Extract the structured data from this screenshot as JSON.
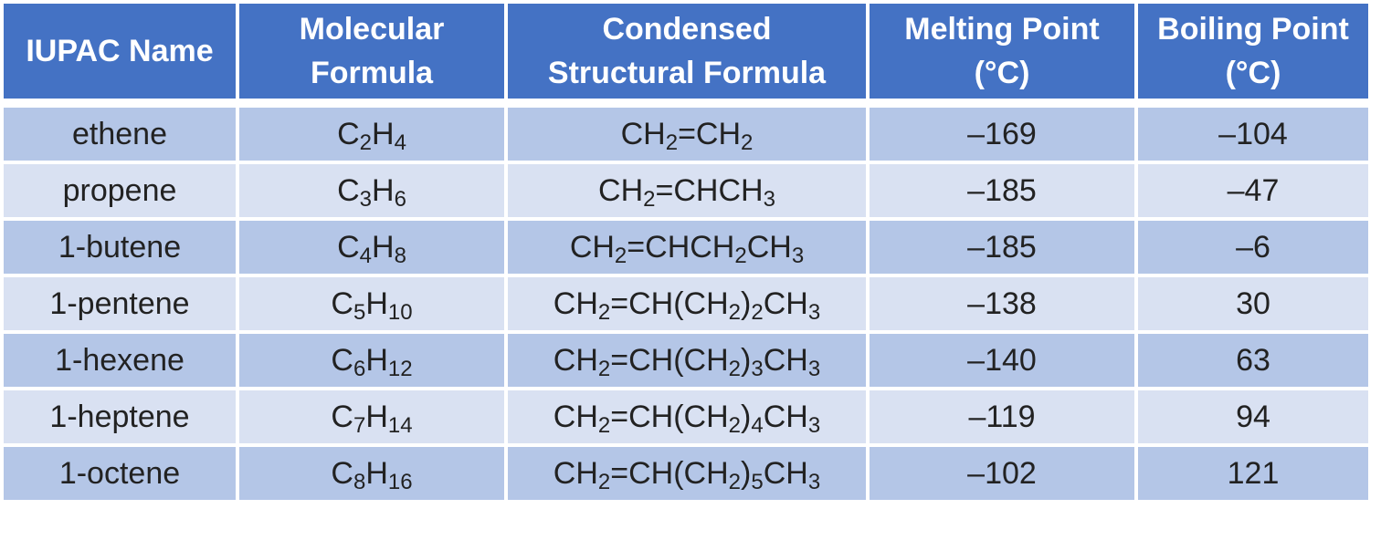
{
  "header": {
    "col_iupac": "IUPAC Name",
    "col_molecular_line1": "Molecular",
    "col_molecular_line2": "Formula",
    "col_condensed_line1": "Condensed",
    "col_condensed_line2": "Structural Formula",
    "col_melting_line1": "Melting Point",
    "col_melting_line2": "(°C)",
    "col_boiling_line1": "Boiling Point",
    "col_boiling_line2": "(°C)"
  },
  "rows": [
    {
      "name": "ethene",
      "molecular": [
        {
          "t": "C"
        },
        {
          "s": "2"
        },
        {
          "t": "H"
        },
        {
          "s": "4"
        }
      ],
      "condensed": [
        {
          "t": "CH"
        },
        {
          "s": "2"
        },
        {
          "t": "=CH"
        },
        {
          "s": "2"
        }
      ],
      "melting": "–169",
      "boiling": "–104"
    },
    {
      "name": "propene",
      "molecular": [
        {
          "t": "C"
        },
        {
          "s": "3"
        },
        {
          "t": "H"
        },
        {
          "s": "6"
        }
      ],
      "condensed": [
        {
          "t": "CH"
        },
        {
          "s": "2"
        },
        {
          "t": "=CHCH"
        },
        {
          "s": "3"
        }
      ],
      "melting": "–185",
      "boiling": "–47"
    },
    {
      "name": "1-butene",
      "molecular": [
        {
          "t": "C"
        },
        {
          "s": "4"
        },
        {
          "t": "H"
        },
        {
          "s": "8"
        }
      ],
      "condensed": [
        {
          "t": "CH"
        },
        {
          "s": "2"
        },
        {
          "t": "=CHCH"
        },
        {
          "s": "2"
        },
        {
          "t": "CH"
        },
        {
          "s": "3"
        }
      ],
      "melting": "–185",
      "boiling": "–6"
    },
    {
      "name": "1-pentene",
      "molecular": [
        {
          "t": "C"
        },
        {
          "s": "5"
        },
        {
          "t": "H"
        },
        {
          "s": "10"
        }
      ],
      "condensed": [
        {
          "t": "CH"
        },
        {
          "s": "2"
        },
        {
          "t": "=CH(CH"
        },
        {
          "s": "2"
        },
        {
          "t": ")"
        },
        {
          "s": "2"
        },
        {
          "t": "CH"
        },
        {
          "s": "3"
        }
      ],
      "melting": "–138",
      "boiling": "30"
    },
    {
      "name": "1-hexene",
      "molecular": [
        {
          "t": "C"
        },
        {
          "s": "6"
        },
        {
          "t": "H"
        },
        {
          "s": "12"
        }
      ],
      "condensed": [
        {
          "t": "CH"
        },
        {
          "s": "2"
        },
        {
          "t": "=CH(CH"
        },
        {
          "s": "2"
        },
        {
          "t": ")"
        },
        {
          "s": "3"
        },
        {
          "t": "CH"
        },
        {
          "s": "3"
        }
      ],
      "melting": "–140",
      "boiling": "63"
    },
    {
      "name": "1-heptene",
      "molecular": [
        {
          "t": "C"
        },
        {
          "s": "7"
        },
        {
          "t": "H"
        },
        {
          "s": "14"
        }
      ],
      "condensed": [
        {
          "t": "CH"
        },
        {
          "s": "2"
        },
        {
          "t": "=CH(CH"
        },
        {
          "s": "2"
        },
        {
          "t": ")"
        },
        {
          "s": "4"
        },
        {
          "t": "CH"
        },
        {
          "s": "3"
        }
      ],
      "melting": "–119",
      "boiling": "94"
    },
    {
      "name": "1-octene",
      "molecular": [
        {
          "t": "C"
        },
        {
          "s": "8"
        },
        {
          "t": "H"
        },
        {
          "s": "16"
        }
      ],
      "condensed": [
        {
          "t": "CH"
        },
        {
          "s": "2"
        },
        {
          "t": "=CH(CH"
        },
        {
          "s": "2"
        },
        {
          "t": ")"
        },
        {
          "s": "5"
        },
        {
          "t": "CH"
        },
        {
          "s": "3"
        }
      ],
      "melting": "–102",
      "boiling": "121"
    }
  ],
  "colors": {
    "header_bg": "#4472c4",
    "row_dark": "#b4c6e7",
    "row_light": "#d9e1f2"
  }
}
